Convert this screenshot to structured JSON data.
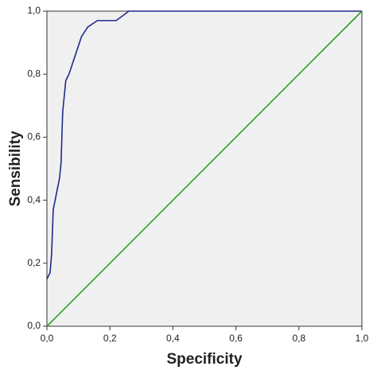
{
  "chart_data": {
    "type": "line",
    "x_label": "Specificity",
    "y_label": "Sensibility",
    "xlim": [
      0,
      1
    ],
    "ylim": [
      0,
      1
    ],
    "xticks": [
      {
        "value": 0,
        "label": "0,0"
      },
      {
        "value": 0.2,
        "label": "0,2"
      },
      {
        "value": 0.4,
        "label": "0,4"
      },
      {
        "value": 0.6,
        "label": "0,6"
      },
      {
        "value": 0.8,
        "label": "0,8"
      },
      {
        "value": 1,
        "label": "1,0"
      }
    ],
    "yticks": [
      {
        "value": 0,
        "label": "0,0"
      },
      {
        "value": 0.2,
        "label": "0,2"
      },
      {
        "value": 0.4,
        "label": "0,4"
      },
      {
        "value": 0.6,
        "label": "0,6"
      },
      {
        "value": 0.8,
        "label": "0,8"
      },
      {
        "value": 1,
        "label": "1,0"
      }
    ],
    "background": "#f0f0f0",
    "series": [
      {
        "color": "#1f2a8a",
        "x": [
          0,
          0.01,
          0.015,
          0.02,
          0.03,
          0.04,
          0.045,
          0.05,
          0.055,
          0.06,
          0.07,
          0.08,
          0.1,
          0.11,
          0.13,
          0.16,
          0.22,
          0.26,
          1.0
        ],
        "values": [
          0.15,
          0.17,
          0.23,
          0.37,
          0.42,
          0.47,
          0.52,
          0.68,
          0.73,
          0.78,
          0.8,
          0.83,
          0.89,
          0.92,
          0.95,
          0.97,
          0.97,
          1.0,
          1.0
        ]
      },
      {
        "color": "#2ca02c",
        "x": [
          0,
          1
        ],
        "values": [
          0,
          1
        ]
      }
    ]
  }
}
